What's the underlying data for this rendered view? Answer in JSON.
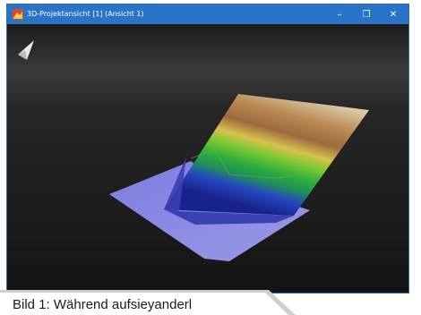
{
  "window": {
    "title": "3D-Projektansicht [1] (Ansicht 1)",
    "minimize_symbol": "–",
    "maximize_symbol": "❐",
    "close_symbol": "✕"
  },
  "icons": {
    "app": "terrain-app-icon",
    "navigation": "north-arrow-icon"
  },
  "caption": {
    "text": "Bild 1: Während aufsieyanderl"
  },
  "colors": {
    "titlebar": "#2a74c8",
    "viewport_sky_top": "#2a2a2a",
    "viewport_ground": "#1a1a1a",
    "terrain_low": "#1f3fb0",
    "terrain_mid": "#3fbf3f",
    "terrain_high": "#c9b48a",
    "base_plane": "#8f8fe0"
  }
}
